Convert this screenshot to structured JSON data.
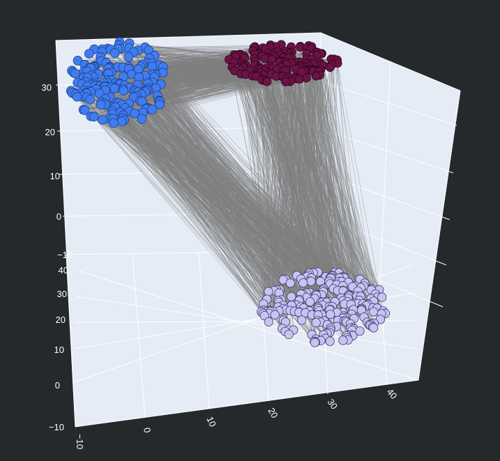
{
  "chart_data": {
    "type": "scatter",
    "subtype": "3d-scatter-with-connecting-lines",
    "title": "",
    "background_color": "#25292c",
    "scene_color": "#e5ecf6",
    "grid_color": "#ffffff",
    "line_color": "#808080",
    "grid": true,
    "axes": {
      "x": {
        "label": "",
        "range": [
          -10,
          45
        ],
        "ticks": [
          "−10",
          "0",
          "10",
          "20",
          "30",
          "40"
        ]
      },
      "y": {
        "label": "",
        "range": [
          -10,
          45
        ],
        "ticks": [
          "−10",
          "0",
          "10",
          "20",
          "30",
          "40"
        ]
      },
      "z": {
        "label": "",
        "range": [
          -10,
          38
        ],
        "ticks": [
          "−10",
          "0",
          "10",
          "20",
          "30"
        ]
      }
    },
    "series": [
      {
        "color": "#3f7cf0",
        "approx_center": {
          "x": -8,
          "y": 3,
          "z": 33
        }
      },
      {
        "color": "#6b1344",
        "approx_center": {
          "x": 18,
          "y": 38,
          "z": 33
        }
      },
      {
        "color": "#c8c3f5",
        "approx_center": {
          "x": 34,
          "y": 30,
          "z": -5
        }
      }
    ]
  }
}
